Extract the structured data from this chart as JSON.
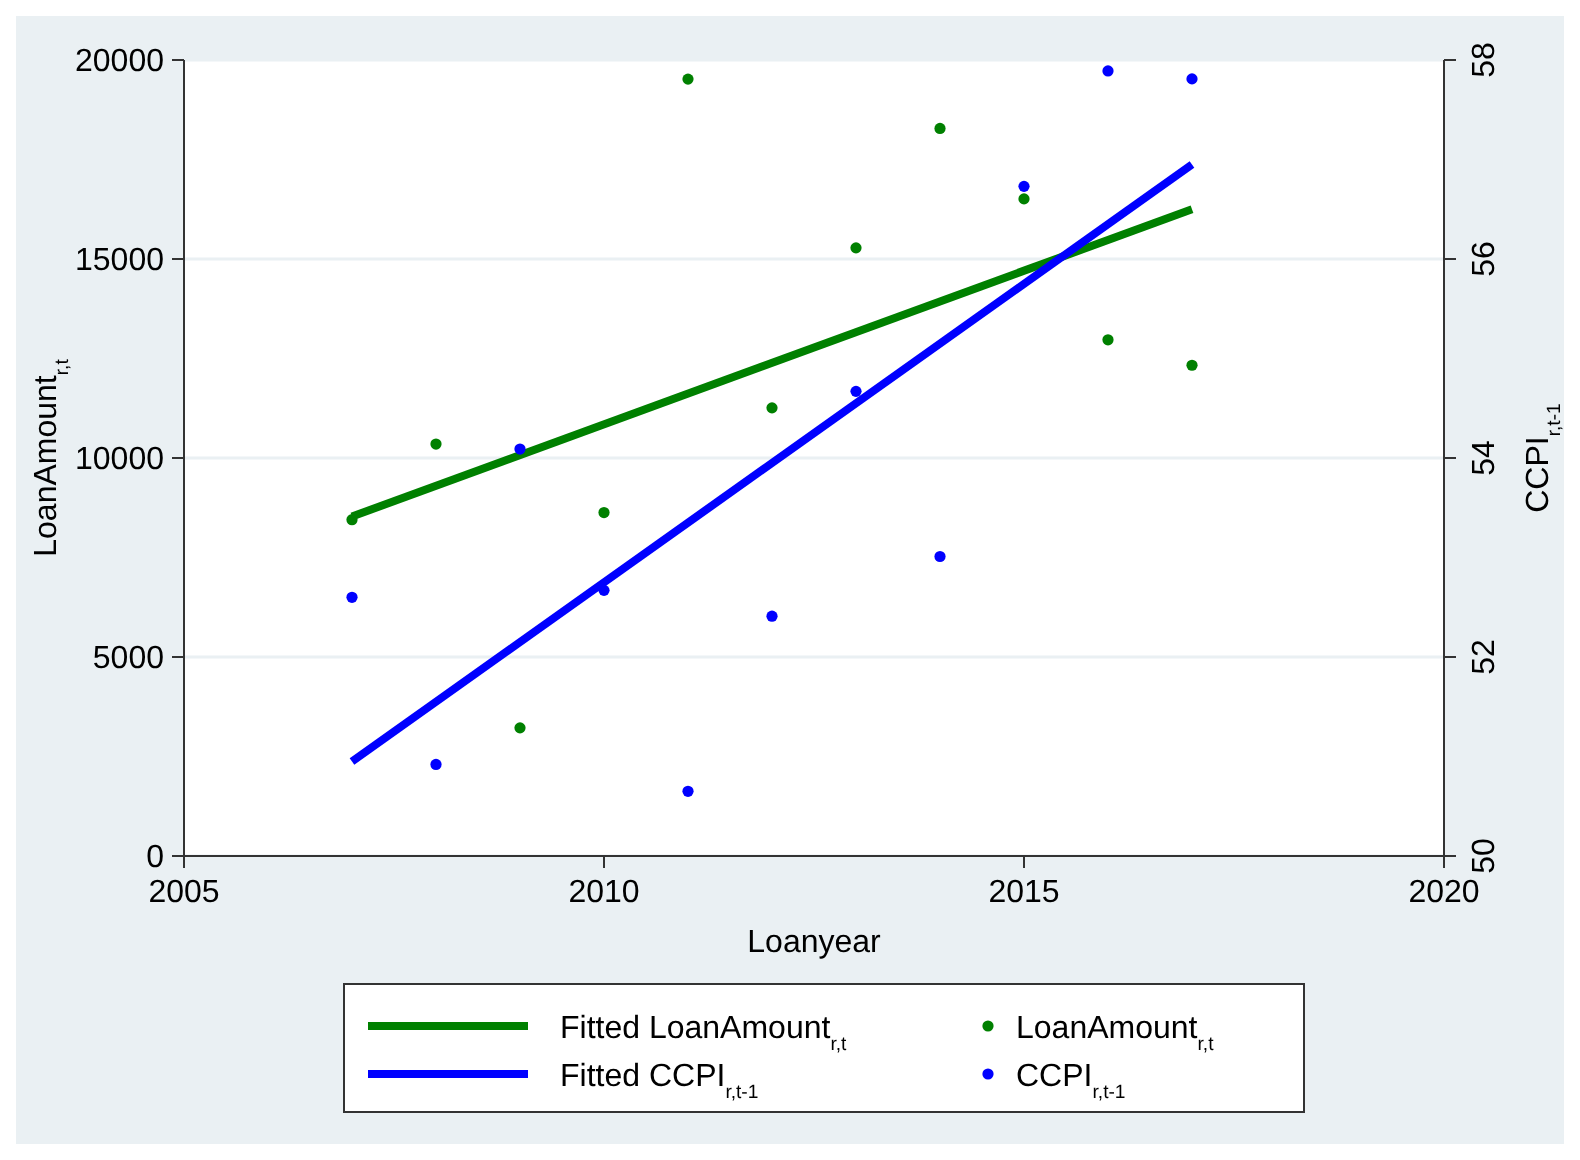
{
  "chart_data": {
    "type": "scatter",
    "xlabel": "Loanyear",
    "ylabel": "LoanAmount$_{r,t}$",
    "y2label": "CCPI$_{r,t-1}$",
    "xlim": [
      2005,
      2020
    ],
    "xticks": [
      2005,
      2010,
      2015,
      2020
    ],
    "ylim": [
      0,
      20000
    ],
    "yticks": [
      0,
      5000,
      10000,
      15000,
      20000
    ],
    "y2lim": [
      50,
      58
    ],
    "y2ticks": [
      50,
      52,
      54,
      56,
      58
    ],
    "grid": "y",
    "legend": "bottom",
    "marker": "circle",
    "line_style": "solid",
    "series": [
      {
        "name": "Fitted LoanAmount$_{r,t}$",
        "type": "line",
        "marker": "none",
        "color": "#008000",
        "x": [
          2007,
          2017
        ],
        "values": [
          8530,
          16250
        ]
      },
      {
        "name": "LoanAmount$_{r,t}$",
        "color": "#008000",
        "x": [
          2007,
          2008,
          2009,
          2010,
          2011,
          2012,
          2013,
          2014,
          2015,
          2016,
          2017
        ],
        "values": [
          8450,
          10350,
          3220,
          8630,
          19520,
          11260,
          15280,
          18280,
          16510,
          12970,
          12330
        ]
      },
      {
        "name": "Fitted CCPI$_{r,t-1}$",
        "type": "line",
        "marker": "none",
        "axis": "y2",
        "color": "#0000ff",
        "x": [
          2007,
          2017
        ],
        "values": [
          50.95,
          56.95
        ]
      },
      {
        "name": "CCPI$_{r,t-1}$",
        "axis": "y2",
        "color": "#0000ff",
        "x": [
          2007,
          2008,
          2009,
          2010,
          2011,
          2012,
          2013,
          2014,
          2015,
          2016,
          2017
        ],
        "values": [
          52.6,
          50.92,
          54.09,
          52.67,
          50.65,
          52.41,
          54.67,
          53.01,
          56.73,
          57.89,
          57.81
        ]
      }
    ]
  }
}
